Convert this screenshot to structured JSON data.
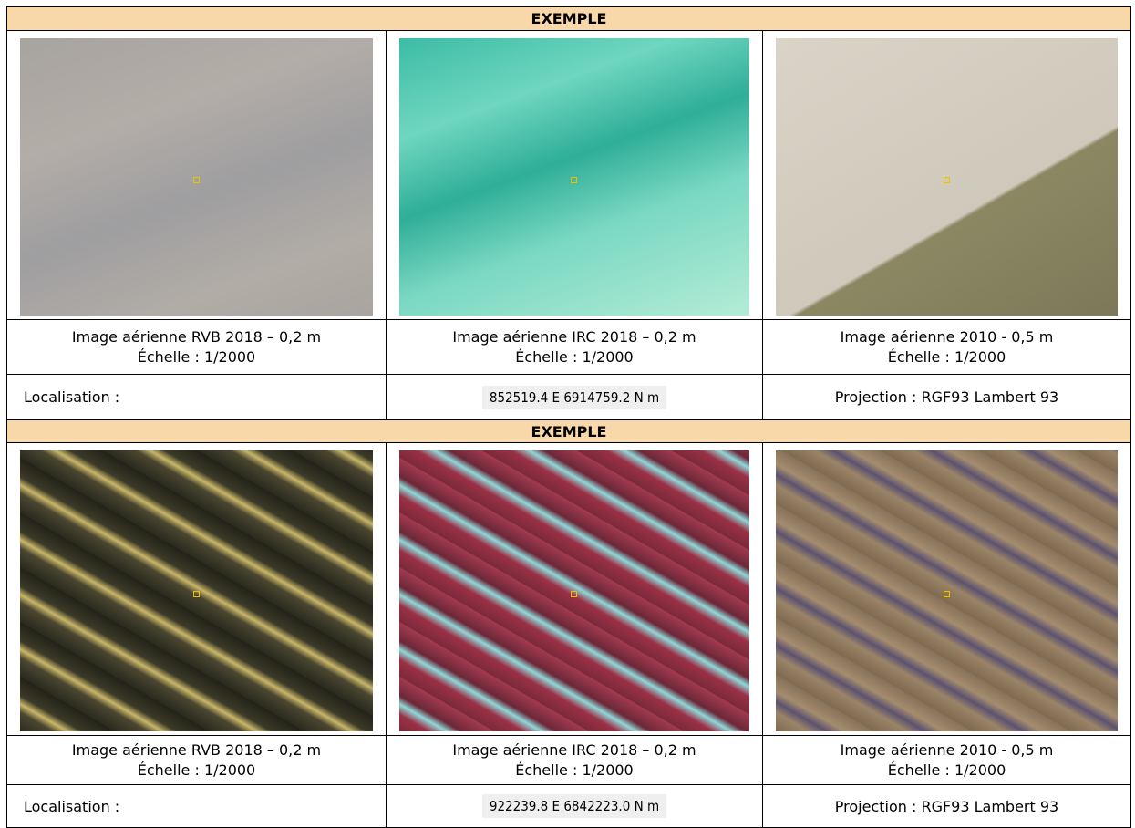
{
  "sections": [
    {
      "header": "EXEMPLE",
      "images": [
        {
          "caption": "Image aérienne RVB 2018 – 0,2 m",
          "scale": "Échelle : 1/2000"
        },
        {
          "caption": "Image aérienne IRC 2018 – 0,2 m",
          "scale": "Échelle : 1/2000"
        },
        {
          "caption": "Image aérienne 2010 - 0,5 m",
          "scale": "Échelle : 1/2000"
        }
      ],
      "location_label": "Localisation :",
      "coordinates": "852519.4 E  6914759.2 N m",
      "projection": "Projection : RGF93 Lambert 93"
    },
    {
      "header": "EXEMPLE",
      "images": [
        {
          "caption": "Image aérienne RVB 2018 – 0,2 m",
          "scale": "Échelle : 1/2000"
        },
        {
          "caption": "Image aérienne IRC 2018 – 0,2 m",
          "scale": "Échelle : 1/2000"
        },
        {
          "caption": "Image aérienne 2010 - 0,5 m",
          "scale": "Échelle : 1/2000"
        }
      ],
      "location_label": "Localisation :",
      "coordinates": "922239.8 E  6842223.0 N m",
      "projection": "Projection : RGF93 Lambert 93"
    }
  ]
}
